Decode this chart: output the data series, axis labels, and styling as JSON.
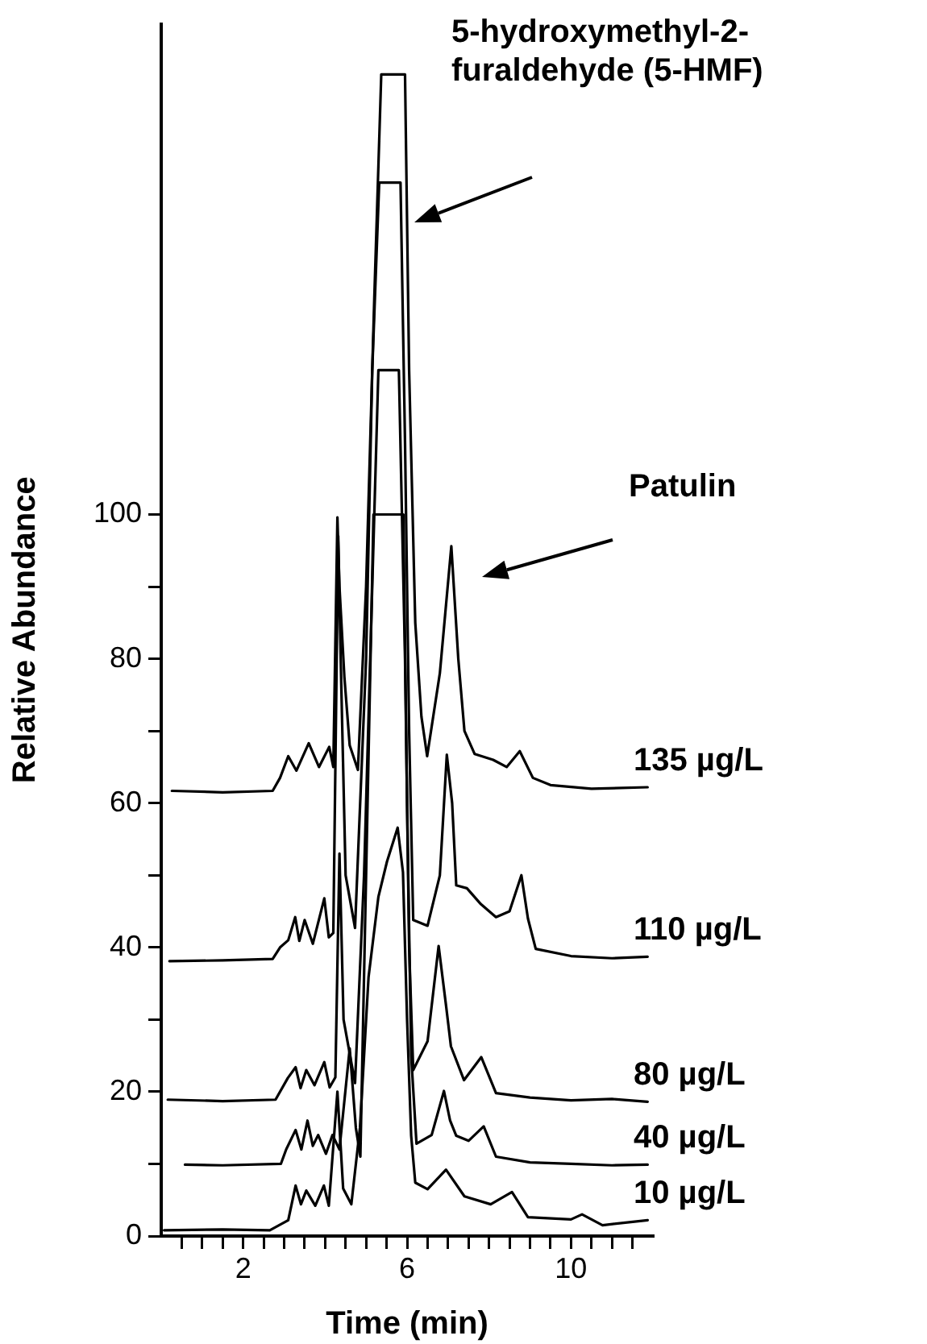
{
  "chart_data": {
    "type": "line",
    "xlabel": "Time (min)",
    "ylabel": "Relative Abundance",
    "xlim": [
      0,
      12
    ],
    "ylim": [
      0,
      168
    ],
    "xticks": [
      {
        "value": 0.5,
        "label": null
      },
      {
        "value": 1,
        "label": null
      },
      {
        "value": 1.5,
        "label": null
      },
      2,
      {
        "value": 2.5,
        "label": null
      },
      {
        "value": 3,
        "label": null
      },
      {
        "value": 3.5,
        "label": null
      },
      {
        "value": 4,
        "label": null
      },
      {
        "value": 4.5,
        "label": null
      },
      {
        "value": 5,
        "label": null
      },
      {
        "value": 5.5,
        "label": null
      },
      6,
      {
        "value": 6.5,
        "label": null
      },
      {
        "value": 7,
        "label": null
      },
      {
        "value": 7.5,
        "label": null
      },
      {
        "value": 8,
        "label": null
      },
      {
        "value": 8.5,
        "label": null
      },
      {
        "value": 9,
        "label": null
      },
      {
        "value": 9.5,
        "label": null
      },
      10,
      {
        "value": 10.5,
        "label": null
      },
      {
        "value": 11,
        "label": null
      },
      {
        "value": 11.5,
        "label": null
      }
    ],
    "yticks": [
      0,
      {
        "value": 10,
        "label": null
      },
      20,
      {
        "value": 30,
        "label": null
      },
      40,
      {
        "value": 50,
        "label": null
      },
      60,
      {
        "value": 70,
        "label": null
      },
      80,
      {
        "value": 90,
        "label": null
      },
      100
    ],
    "grid": false,
    "legend": false,
    "marker": "none",
    "line_style": "solid",
    "series": [
      {
        "name": "135 µg/L",
        "color": "#000000",
        "x": [
          0.26,
          1.5,
          2.72,
          2.9,
          3.1,
          3.3,
          3.6,
          3.85,
          4.1,
          4.2,
          4.3,
          4.35,
          4.47,
          4.6,
          4.8,
          5.0,
          5.2,
          5.37,
          5.95,
          6.05,
          6.2,
          6.35,
          6.49,
          6.8,
          7.08,
          7.25,
          7.4,
          7.65,
          8.1,
          8.43,
          8.75,
          9.07,
          9.5,
          10.5,
          11.87
        ],
        "values": [
          61.7,
          61.5,
          61.7,
          63.5,
          66.5,
          64.5,
          68.3,
          65,
          67.8,
          65,
          99.6,
          90,
          77.5,
          68,
          64.6,
          90,
          130,
          161,
          161,
          120,
          85,
          72,
          66.5,
          78,
          95.6,
          80,
          70,
          66.8,
          66,
          65,
          67.2,
          63.5,
          62.5,
          62,
          62.2
        ]
      },
      {
        "name": "110 µg/L",
        "color": "#000000",
        "x": [
          0.2,
          1.5,
          2.72,
          2.9,
          3.1,
          3.27,
          3.37,
          3.5,
          3.7,
          3.98,
          4.09,
          4.2,
          4.32,
          4.38,
          4.5,
          4.73,
          5.0,
          5.15,
          5.32,
          5.84,
          5.95,
          6.05,
          6.15,
          6.5,
          6.8,
          6.97,
          7.1,
          7.2,
          7.46,
          7.8,
          8.17,
          8.5,
          8.79,
          8.95,
          9.14,
          10,
          11,
          11.87
        ],
        "values": [
          38.1,
          38.2,
          38.4,
          40,
          41,
          44.2,
          40.9,
          43.8,
          40.5,
          46.8,
          41.4,
          42,
          97,
          80,
          50,
          42.7,
          80,
          120,
          146,
          146,
          110,
          70,
          43.8,
          43,
          50,
          66.7,
          60,
          48.6,
          48.2,
          46,
          44.2,
          45,
          50,
          44,
          39.8,
          38.8,
          38.5,
          38.7
        ]
      },
      {
        "name": "80 µg/L",
        "color": "#000000",
        "x": [
          0.16,
          1.5,
          2.79,
          3.09,
          3.28,
          3.4,
          3.54,
          3.74,
          3.98,
          4.11,
          4.25,
          4.35,
          4.45,
          4.73,
          4.95,
          5.15,
          5.3,
          5.8,
          5.95,
          6.05,
          6.15,
          6.5,
          6.77,
          6.95,
          7.07,
          7.39,
          7.81,
          8.17,
          9,
          10,
          11,
          11.87
        ],
        "values": [
          18.9,
          18.7,
          18.9,
          21.9,
          23.4,
          20.5,
          23,
          20.9,
          24.1,
          20.6,
          22,
          53,
          30,
          21.2,
          50,
          90,
          120,
          120,
          80,
          40,
          23,
          27,
          40.2,
          32,
          26.3,
          21.6,
          24.8,
          19.8,
          19.2,
          18.8,
          19,
          18.6
        ]
      },
      {
        "name": "40 µg/L",
        "color": "#000000",
        "x": [
          0.58,
          1.5,
          2.92,
          3.05,
          3.28,
          3.42,
          3.57,
          3.7,
          3.83,
          4.02,
          4.18,
          4.35,
          4.6,
          4.75,
          4.86,
          5.0,
          5.18,
          5.91,
          6.0,
          6.1,
          6.23,
          6.6,
          6.9,
          7.05,
          7.2,
          7.5,
          7.87,
          8.17,
          9,
          10,
          11,
          11.87
        ],
        "values": [
          9.9,
          9.8,
          10,
          12,
          14.7,
          12,
          16,
          12.5,
          14,
          11.4,
          14,
          12,
          26,
          15,
          11,
          50,
          100,
          100,
          60,
          25,
          12.8,
          14,
          20.1,
          16,
          13.9,
          13.2,
          15.2,
          11,
          10.2,
          10,
          9.8,
          9.9
        ]
      },
      {
        "name": "10 µg/L",
        "color": "#000000",
        "x": [
          0.07,
          1.5,
          2.65,
          3.1,
          3.28,
          3.41,
          3.54,
          3.76,
          3.97,
          4.09,
          4.3,
          4.44,
          4.64,
          4.85,
          5.06,
          5.3,
          5.51,
          5.77,
          5.9,
          6.0,
          6.1,
          6.2,
          6.5,
          6.95,
          7.4,
          8.04,
          8.56,
          8.95,
          10,
          10.27,
          10.77,
          11.87
        ],
        "values": [
          0.8,
          0.9,
          0.8,
          2.2,
          7,
          4.4,
          6.3,
          4.2,
          7,
          4.2,
          20,
          6.6,
          4.4,
          15,
          35.9,
          47,
          51.9,
          56.6,
          50.4,
          30,
          13.9,
          7.4,
          6.5,
          9.2,
          5.5,
          4.4,
          6.1,
          2.6,
          2.3,
          3,
          1.5,
          2.2
        ]
      }
    ],
    "annotations": [
      "5-hydroxymethyl-2-furaldehyde (5-HMF)",
      "Patulin"
    ]
  }
}
